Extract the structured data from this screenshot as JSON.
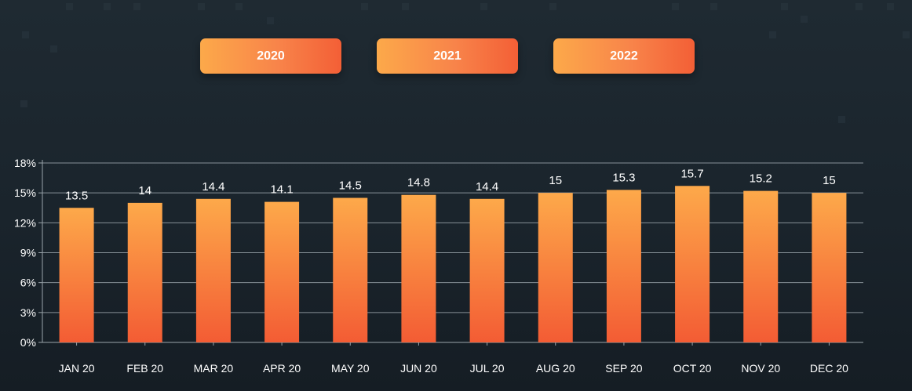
{
  "year_buttons": [
    {
      "label": "2020"
    },
    {
      "label": "2021"
    },
    {
      "label": "2022"
    }
  ],
  "colors": {
    "bar_top": "#fda94a",
    "bar_bottom": "#f35c34",
    "grid": "#9aa4ab",
    "text": "#ffffff"
  },
  "chart_data": {
    "type": "bar",
    "categories": [
      "JAN 20",
      "FEB 20",
      "MAR 20",
      "APR 20",
      "MAY 20",
      "JUN 20",
      "JUL 20",
      "AUG 20",
      "SEP 20",
      "OCT 20",
      "NOV 20",
      "DEC 20"
    ],
    "values": [
      13.5,
      14,
      14.4,
      14.1,
      14.5,
      14.8,
      14.4,
      15,
      15.3,
      15.7,
      15.2,
      15
    ],
    "value_labels": [
      "13.5",
      "14",
      "14.4",
      "14.1",
      "14.5",
      "14.8",
      "14.4",
      "15",
      "15.3",
      "15.7",
      "15.2",
      "15"
    ],
    "y_ticks": [
      0,
      3,
      6,
      9,
      12,
      15,
      18
    ],
    "y_tick_labels": [
      "0%",
      "3%",
      "6%",
      "9%",
      "12%",
      "15%",
      "18%"
    ],
    "ylim": [
      0,
      18
    ],
    "grid": true,
    "title": "",
    "xlabel": "",
    "ylabel": ""
  }
}
